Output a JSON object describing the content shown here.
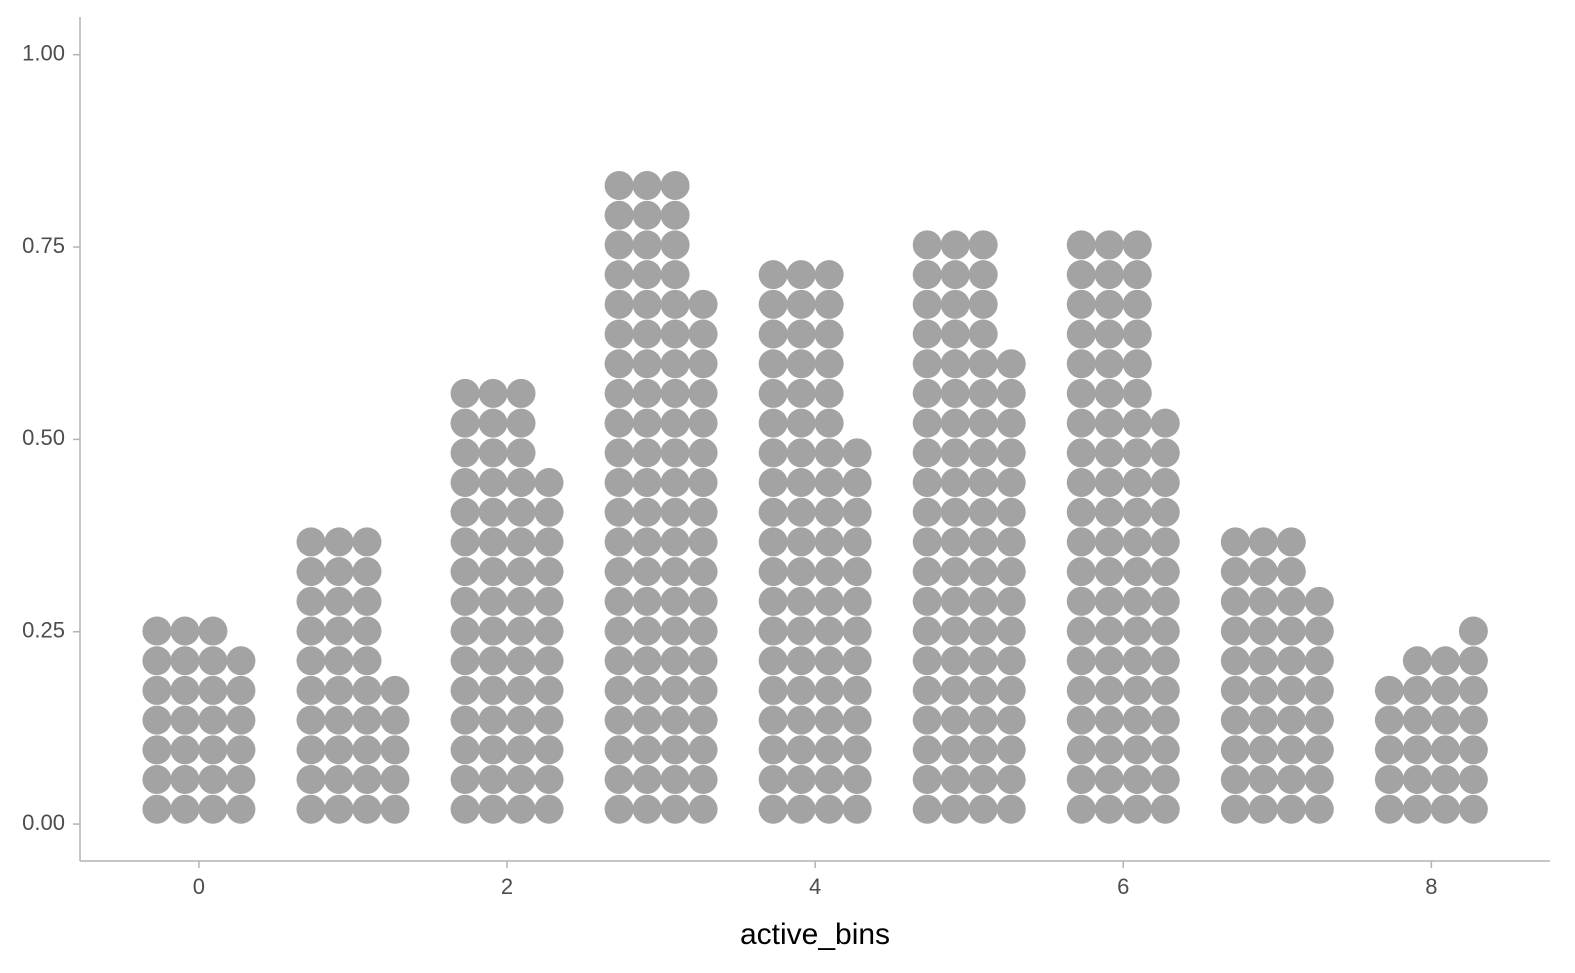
{
  "chart_data": {
    "type": "dotplot",
    "x_label": "active_bins",
    "x": [
      0,
      1,
      2,
      3,
      4,
      5,
      6,
      7,
      8
    ],
    "stacks": [
      [
        7,
        7,
        7,
        6
      ],
      [
        10,
        10,
        10,
        5
      ],
      [
        15,
        15,
        15,
        12
      ],
      [
        22,
        22,
        22,
        18
      ],
      [
        19,
        19,
        19,
        13
      ],
      [
        20,
        20,
        20,
        16
      ],
      [
        20,
        20,
        20,
        14
      ],
      [
        10,
        10,
        10,
        8
      ],
      [
        5,
        6,
        6,
        7
      ]
    ],
    "color": "#a3a3a3",
    "xlim": [
      -0.772,
      8.77
    ],
    "xticks": [
      0,
      2,
      4,
      6,
      8
    ],
    "ylim": [
      -0.048,
      1.049
    ],
    "yticks": [
      {
        "value": 0,
        "label": "0.00"
      },
      {
        "value": 0.25,
        "label": "0.25"
      },
      {
        "value": 0.5,
        "label": "0.50"
      },
      {
        "value": 0.75,
        "label": "0.75"
      },
      {
        "value": 1,
        "label": "1.00"
      }
    ],
    "grid": false
  }
}
